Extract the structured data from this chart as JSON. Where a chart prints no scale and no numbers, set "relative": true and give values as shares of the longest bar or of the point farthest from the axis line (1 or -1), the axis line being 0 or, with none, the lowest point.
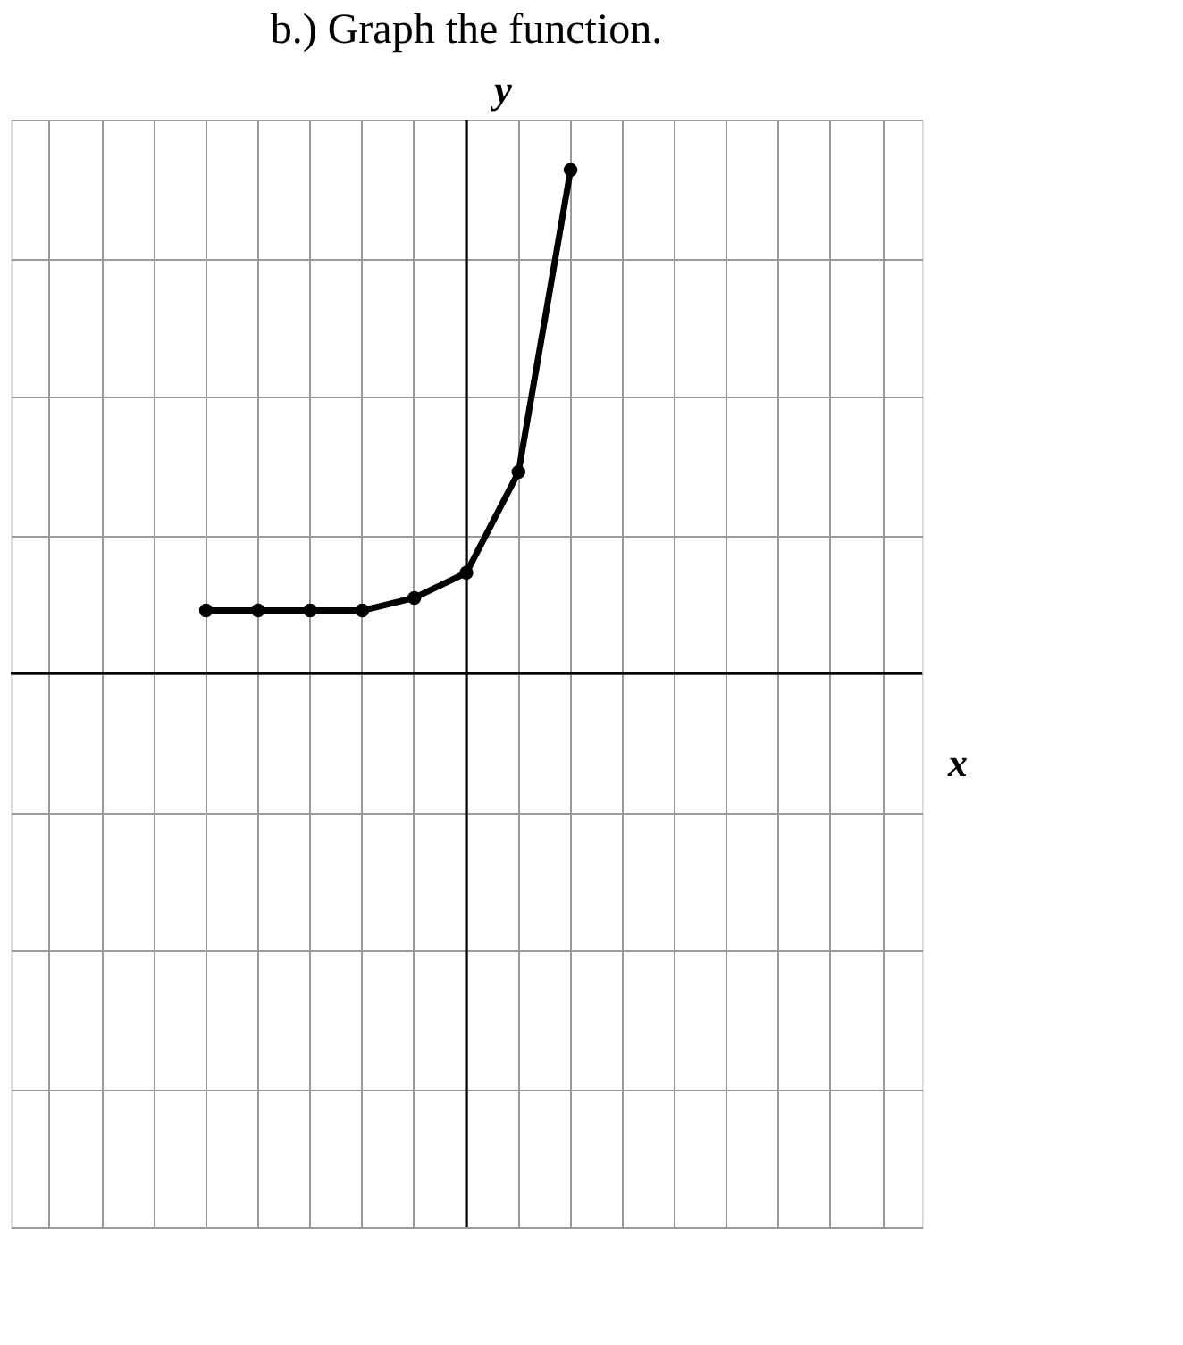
{
  "chart_data": {
    "type": "line",
    "title": "b.) Graph the function.",
    "xlabel": "x",
    "ylabel": "y",
    "relative": true,
    "categories": [
      null,
      null,
      null,
      null,
      null,
      null,
      null,
      null,
      null,
      null,
      null,
      null,
      null,
      null,
      null,
      null,
      null
    ],
    "series": [
      {
        "color": "#000000",
        "values": [
          null,
          null,
          null,
          0.125,
          0.125,
          0.125,
          0.125,
          0.15,
          0.2,
          0.4,
          1.0,
          null,
          null,
          null,
          null,
          null,
          null
        ]
      }
    ],
    "marker": "circle",
    "line_style": "solid",
    "grid": true,
    "legend": false
  }
}
